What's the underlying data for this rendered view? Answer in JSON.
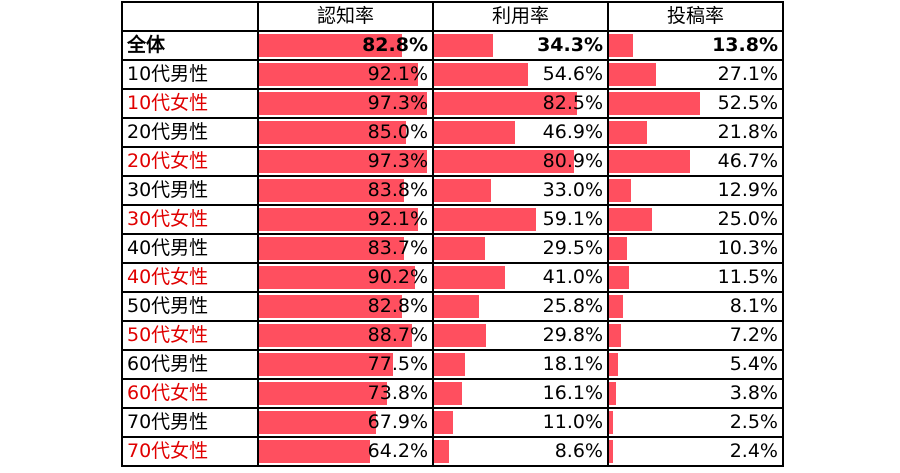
{
  "chart_data": {
    "type": "table",
    "columns": [
      "認知率",
      "利用率",
      "投稿率"
    ],
    "bar_color": "#ff4f5f",
    "rows": [
      {
        "label": "全体",
        "values": [
          "82.8%",
          "34.3%",
          "13.8%"
        ],
        "bold": true,
        "red": false
      },
      {
        "label": "10代男性",
        "values": [
          "92.1%",
          "54.6%",
          "27.1%"
        ],
        "bold": false,
        "red": false
      },
      {
        "label": "10代女性",
        "values": [
          "97.3%",
          "82.5%",
          "52.5%"
        ],
        "bold": false,
        "red": true
      },
      {
        "label": "20代男性",
        "values": [
          "85.0%",
          "46.9%",
          "21.8%"
        ],
        "bold": false,
        "red": false
      },
      {
        "label": "20代女性",
        "values": [
          "97.3%",
          "80.9%",
          "46.7%"
        ],
        "bold": false,
        "red": true
      },
      {
        "label": "30代男性",
        "values": [
          "83.8%",
          "33.0%",
          "12.9%"
        ],
        "bold": false,
        "red": false
      },
      {
        "label": "30代女性",
        "values": [
          "92.1%",
          "59.1%",
          "25.0%"
        ],
        "bold": false,
        "red": true
      },
      {
        "label": "40代男性",
        "values": [
          "83.7%",
          "29.5%",
          "10.3%"
        ],
        "bold": false,
        "red": false
      },
      {
        "label": "40代女性",
        "values": [
          "90.2%",
          "41.0%",
          "11.5%"
        ],
        "bold": false,
        "red": true
      },
      {
        "label": "50代男性",
        "values": [
          "82.8%",
          "25.8%",
          "8.1%"
        ],
        "bold": false,
        "red": false
      },
      {
        "label": "50代女性",
        "values": [
          "88.7%",
          "29.8%",
          "7.2%"
        ],
        "bold": false,
        "red": true
      },
      {
        "label": "60代男性",
        "values": [
          "77.5%",
          "18.1%",
          "5.4%"
        ],
        "bold": false,
        "red": false
      },
      {
        "label": "60代女性",
        "values": [
          "73.8%",
          "16.1%",
          "3.8%"
        ],
        "bold": false,
        "red": true
      },
      {
        "label": "70代男性",
        "values": [
          "67.9%",
          "11.0%",
          "2.5%"
        ],
        "bold": false,
        "red": false
      },
      {
        "label": "70代女性",
        "values": [
          "64.2%",
          "8.6%",
          "2.4%"
        ],
        "bold": false,
        "red": true
      }
    ]
  }
}
